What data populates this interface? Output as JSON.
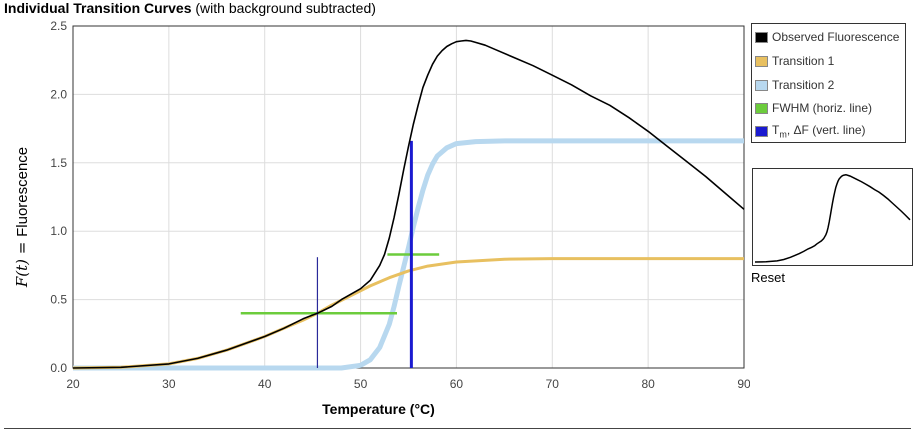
{
  "header": {
    "title_bold": "Individual Transition Curves",
    "title_rest": "(with background subtracted)"
  },
  "legend": {
    "items": [
      {
        "label": "Observed Fluorescence",
        "color": "#000000"
      },
      {
        "label": "Transition 1",
        "color": "#e8c060"
      },
      {
        "label": "Transition 2",
        "color": "#b8d8ef"
      },
      {
        "label": "FWHM (horiz. line)",
        "color": "#6ccc3c"
      },
      {
        "label": "ΔF (vert. line)",
        "label_prefix": "T",
        "label_sub": "m",
        "label_sep": ", ",
        "color": "#1a1ad0"
      }
    ]
  },
  "reset_label": "Reset",
  "chart_data": {
    "type": "line",
    "xlabel": "Temperature (°C)",
    "ylabel": "Fluorescence",
    "ylabel_math": "F(t) =",
    "xlim": [
      20,
      90
    ],
    "ylim": [
      0,
      2.5
    ],
    "xticks": [
      "20",
      "30",
      "40",
      "50",
      "60",
      "70",
      "80",
      "90"
    ],
    "yticks": [
      "0.0",
      "0.5",
      "1.0",
      "1.5",
      "2.0",
      "2.5"
    ],
    "grid": true,
    "legend_position": "outside-right",
    "series": [
      {
        "name": "Observed Fluorescence",
        "color": "#000000",
        "x": [
          20,
          25,
          30,
          33,
          36,
          38,
          40,
          42,
          44,
          45.5,
          47,
          48,
          50,
          51,
          52,
          52.5,
          53,
          53.5,
          54,
          54.5,
          55,
          55.5,
          56,
          56.5,
          57,
          57.5,
          58,
          58.5,
          59,
          59.5,
          60,
          60.5,
          61,
          61.5,
          62,
          63,
          64,
          66,
          68,
          70,
          72,
          74,
          76,
          78,
          80,
          82,
          84,
          86,
          88,
          90
        ],
        "y": [
          0.0,
          0.005,
          0.03,
          0.07,
          0.13,
          0.18,
          0.23,
          0.29,
          0.36,
          0.4,
          0.45,
          0.5,
          0.58,
          0.64,
          0.75,
          0.83,
          0.95,
          1.1,
          1.27,
          1.45,
          1.62,
          1.78,
          1.92,
          2.05,
          2.14,
          2.22,
          2.28,
          2.32,
          2.35,
          2.37,
          2.385,
          2.39,
          2.395,
          2.39,
          2.38,
          2.36,
          2.33,
          2.27,
          2.21,
          2.14,
          2.07,
          1.99,
          1.92,
          1.83,
          1.73,
          1.62,
          1.51,
          1.4,
          1.28,
          1.16
        ]
      },
      {
        "name": "Transition 1",
        "color": "#e8c060",
        "x": [
          20,
          25,
          30,
          33,
          36,
          38,
          40,
          42,
          44,
          45.5,
          47,
          49,
          51,
          53,
          55,
          57,
          60,
          65,
          70,
          75,
          80,
          85,
          90
        ],
        "y": [
          0.0,
          0.005,
          0.03,
          0.07,
          0.13,
          0.18,
          0.23,
          0.29,
          0.35,
          0.4,
          0.46,
          0.53,
          0.6,
          0.66,
          0.71,
          0.745,
          0.775,
          0.795,
          0.8,
          0.8,
          0.8,
          0.8,
          0.8
        ]
      },
      {
        "name": "Transition 2",
        "color": "#b8d8ef",
        "x": [
          20,
          30,
          40,
          48,
          50,
          51,
          52,
          53,
          53.5,
          54,
          54.5,
          55,
          55.5,
          56,
          56.5,
          57,
          57.5,
          58,
          59,
          60,
          62,
          65,
          70,
          80,
          90
        ],
        "y": [
          0.0,
          0.0,
          0.0,
          0.0,
          0.02,
          0.06,
          0.15,
          0.32,
          0.45,
          0.6,
          0.74,
          0.88,
          1.03,
          1.17,
          1.3,
          1.41,
          1.49,
          1.55,
          1.61,
          1.64,
          1.655,
          1.66,
          1.66,
          1.66,
          1.66
        ]
      }
    ],
    "fwhm_lines": [
      {
        "transition": "Transition 1",
        "x_start": 37.5,
        "x_end": 53.8,
        "y": 0.4
      },
      {
        "transition": "Transition 2",
        "x_start": 52.8,
        "x_end": 58.2,
        "y": 0.83
      }
    ],
    "tm_lines": [
      {
        "transition": "Transition 1",
        "x": 45.5,
        "y_top": 0.81
      },
      {
        "transition": "Transition 2",
        "x": 55.3,
        "y_top": 1.66
      }
    ]
  }
}
